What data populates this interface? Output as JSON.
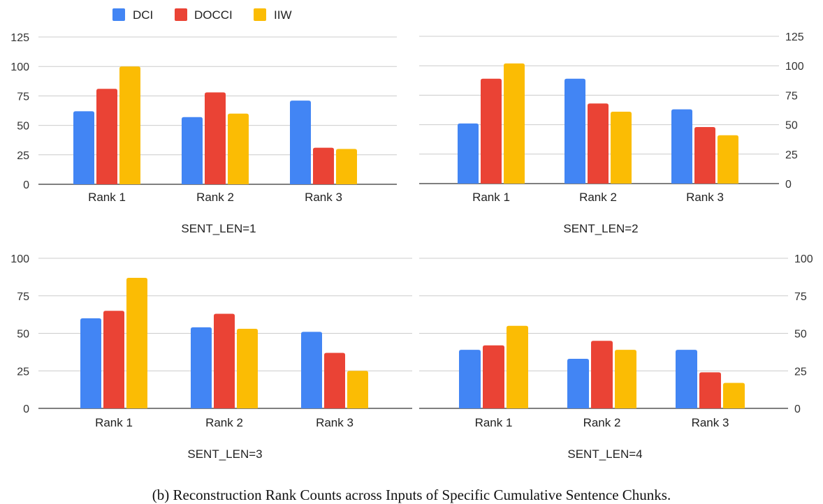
{
  "legend": [
    {
      "name": "DCI",
      "color": "#4285F4"
    },
    {
      "name": "DOCCI",
      "color": "#EA4335"
    },
    {
      "name": "IIW",
      "color": "#FBBC04"
    }
  ],
  "caption": "(b) Reconstruction Rank Counts across Inputs of Specific Cumulative Sentence Chunks.",
  "chart_data": [
    {
      "type": "bar",
      "title": "SENT_LEN=1",
      "categories": [
        "Rank 1",
        "Rank 2",
        "Rank 3"
      ],
      "series": [
        {
          "name": "DCI",
          "values": [
            62,
            57,
            71
          ]
        },
        {
          "name": "DOCCI",
          "values": [
            81,
            78,
            31
          ]
        },
        {
          "name": "IIW",
          "values": [
            100,
            60,
            30
          ]
        }
      ],
      "ylim": [
        0,
        125
      ],
      "yticks": [
        0,
        25,
        50,
        75,
        100,
        125
      ],
      "y_axis_side": "left",
      "grid": true
    },
    {
      "type": "bar",
      "title": "SENT_LEN=2",
      "categories": [
        "Rank 1",
        "Rank 2",
        "Rank 3"
      ],
      "series": [
        {
          "name": "DCI",
          "values": [
            51,
            89,
            63
          ]
        },
        {
          "name": "DOCCI",
          "values": [
            89,
            68,
            48
          ]
        },
        {
          "name": "IIW",
          "values": [
            102,
            61,
            41
          ]
        }
      ],
      "ylim": [
        0,
        125
      ],
      "yticks": [
        0,
        25,
        50,
        75,
        100,
        125
      ],
      "y_axis_side": "right",
      "grid": true
    },
    {
      "type": "bar",
      "title": "SENT_LEN=3",
      "categories": [
        "Rank 1",
        "Rank 2",
        "Rank 3"
      ],
      "series": [
        {
          "name": "DCI",
          "values": [
            60,
            54,
            51
          ]
        },
        {
          "name": "DOCCI",
          "values": [
            65,
            63,
            37
          ]
        },
        {
          "name": "IIW",
          "values": [
            87,
            53,
            25
          ]
        }
      ],
      "ylim": [
        0,
        100
      ],
      "yticks": [
        0,
        25,
        50,
        75,
        100
      ],
      "y_axis_side": "left",
      "grid": true
    },
    {
      "type": "bar",
      "title": "SENT_LEN=4",
      "categories": [
        "Rank 1",
        "Rank 2",
        "Rank 3"
      ],
      "series": [
        {
          "name": "DCI",
          "values": [
            39,
            33,
            39
          ]
        },
        {
          "name": "DOCCI",
          "values": [
            42,
            45,
            24
          ]
        },
        {
          "name": "IIW",
          "values": [
            55,
            39,
            17
          ]
        }
      ],
      "ylim": [
        0,
        100
      ],
      "yticks": [
        0,
        25,
        50,
        75,
        100
      ],
      "y_axis_side": "right",
      "grid": true
    }
  ]
}
